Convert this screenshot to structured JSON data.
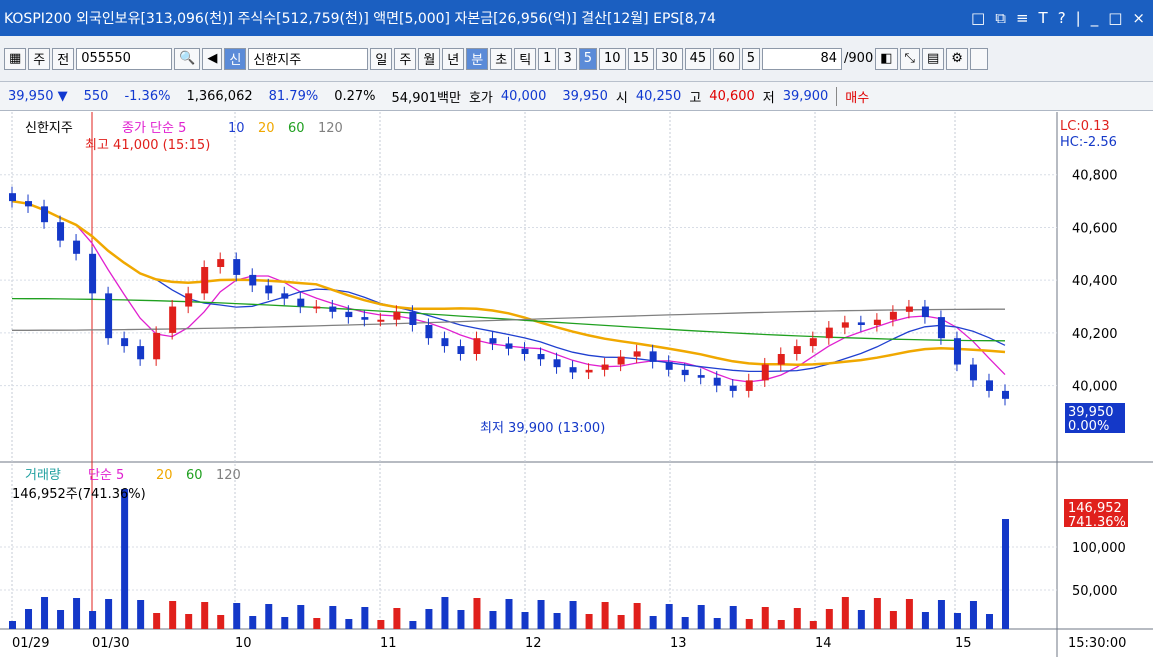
{
  "title": "KOSPI200 외국인보유[313,096(천)] 주식수[512,759(천)] 액면[5,000] 자본금[26,956(억)] 결산[12월] EPS[8,74",
  "window_icons": [
    "□",
    "⧉",
    "≡",
    "T",
    "?",
    "|",
    "_",
    "□",
    "×"
  ],
  "toolbar": {
    "items": [
      "주",
      "전",
      "055550",
      "신",
      "신한지주",
      "일",
      "주",
      "월",
      "년",
      "분",
      "초",
      "틱",
      "1",
      "3",
      "5",
      "10",
      "15",
      "30",
      "45",
      "60",
      "5",
      "84",
      "/900"
    ]
  },
  "quote": {
    "price": "39,950 ▼",
    "change": "550",
    "pct": "-1.36%",
    "volume": "1,366,062",
    "ratio": "81.79%",
    "turnover": "0.27%",
    "amount": "54,901백만",
    "bid_label": "호가",
    "bid": "40,000",
    "ask": "39,950",
    "open_label": "시",
    "open": "40,250",
    "high_label": "고",
    "high": "40,600",
    "low_label": "저",
    "low": "39,900",
    "trade_btn": "매수"
  },
  "legend_price": {
    "name": "신한지주",
    "ma": "종가 단순 5",
    "p10": "10",
    "p20": "20",
    "p60": "60",
    "p120": "120"
  },
  "legend_vol": {
    "name": "거래량",
    "ma": "단순 5",
    "p20": "20",
    "p60": "60",
    "p120": "120"
  },
  "vol_info": "146,952주(741.36%)",
  "high_note": "최고 41,000 (15:15)",
  "low_note": "최저 39,900 (13:00)",
  "lc": "LC:0.13",
  "hc": "HC:-2.56",
  "price_ticks": [
    "40,800",
    "40,600",
    "40,400",
    "40,200",
    "40,000"
  ],
  "current": {
    "price": "39,950",
    "pct": "0.00%"
  },
  "vol_ticks": [
    "100,000",
    "50,000"
  ],
  "vol_current": {
    "value": "146,952",
    "pct": "741.36%"
  },
  "x_labels": [
    "01/29",
    "01/30",
    "10",
    "11",
    "12",
    "13",
    "14",
    "15"
  ],
  "time": "15:30:00",
  "colors": {
    "up": "#e0201c",
    "down": "#1438c8",
    "ma5": "#e020d0",
    "ma10": "#2040d0",
    "ma20": "#f0a800",
    "ma60": "#20a020",
    "ma120": "#808080"
  },
  "chart_data": {
    "type": "candlestick",
    "close_series": [
      40700,
      40680,
      40620,
      40550,
      40500,
      40350,
      40180,
      40150,
      40100,
      40200,
      40300,
      40350,
      40450,
      40480,
      40420,
      40380,
      40350,
      40330,
      40300,
      40300,
      40280,
      40260,
      40250,
      40250,
      40280,
      40230,
      40180,
      40150,
      40120,
      40180,
      40160,
      40140,
      40120,
      40100,
      40070,
      40050,
      40060,
      40080,
      40110,
      40130,
      40090,
      40060,
      40040,
      40030,
      40000,
      39980,
      40020,
      40080,
      40120,
      40150,
      40180,
      40220,
      40240,
      40230,
      40250,
      40280,
      40300,
      40260,
      40180,
      40080,
      40020,
      39980,
      39950
    ]
  }
}
